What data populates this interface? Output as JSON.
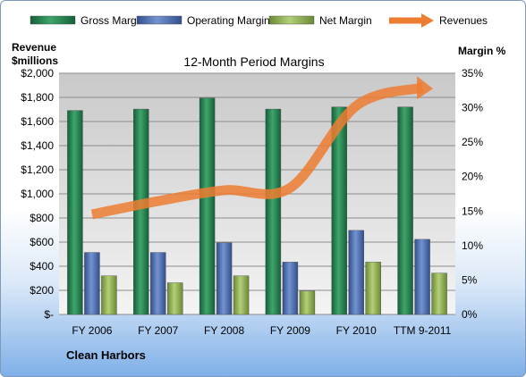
{
  "chart_data": {
    "type": "bar",
    "title": "12-Month Period Margins",
    "company": "Clean Harbors",
    "left_axis_label_line1": "Revenue",
    "left_axis_label_line2": "$millions",
    "right_axis_label": "Margin %",
    "categories": [
      "FY 2006",
      "FY 2007",
      "FY 2008",
      "FY 2009",
      "FY 2010",
      "TTM 9-2011"
    ],
    "left_ylim": [
      0,
      2000
    ],
    "left_ticks": [
      0,
      200,
      400,
      600,
      800,
      1000,
      1200,
      1400,
      1600,
      1800,
      2000
    ],
    "left_tick_labels": [
      "$-",
      "$200",
      "$400",
      "$600",
      "$800",
      "$1,000",
      "$1,200",
      "$1,400",
      "$1,600",
      "$1,800",
      "$2,000"
    ],
    "right_ylim": [
      0,
      35
    ],
    "right_ticks": [
      0,
      5,
      10,
      15,
      20,
      25,
      30,
      35
    ],
    "right_tick_labels": [
      "0%",
      "5%",
      "10%",
      "15%",
      "20%",
      "25%",
      "30%",
      "35%"
    ],
    "legend_position": "top",
    "series": [
      {
        "name": "Gross Margin",
        "axis": "right",
        "kind": "bar",
        "color": "#1f7a45",
        "values": [
          29.6,
          29.8,
          31.4,
          29.8,
          30.1,
          30.1
        ]
      },
      {
        "name": "Operating Margin",
        "axis": "right",
        "kind": "bar",
        "color": "#4a6fb5",
        "values": [
          9.0,
          9.0,
          10.4,
          7.6,
          12.2,
          10.9
        ]
      },
      {
        "name": "Net Margin",
        "axis": "right",
        "kind": "bar",
        "color": "#8dad4e",
        "values": [
          5.6,
          4.6,
          5.6,
          3.4,
          7.6,
          6.0
        ]
      },
      {
        "name": "Revenues",
        "axis": "left",
        "kind": "line",
        "color": "#ed7d31",
        "values": [
          830,
          940,
          1030,
          1050,
          1730,
          1880
        ]
      }
    ]
  }
}
